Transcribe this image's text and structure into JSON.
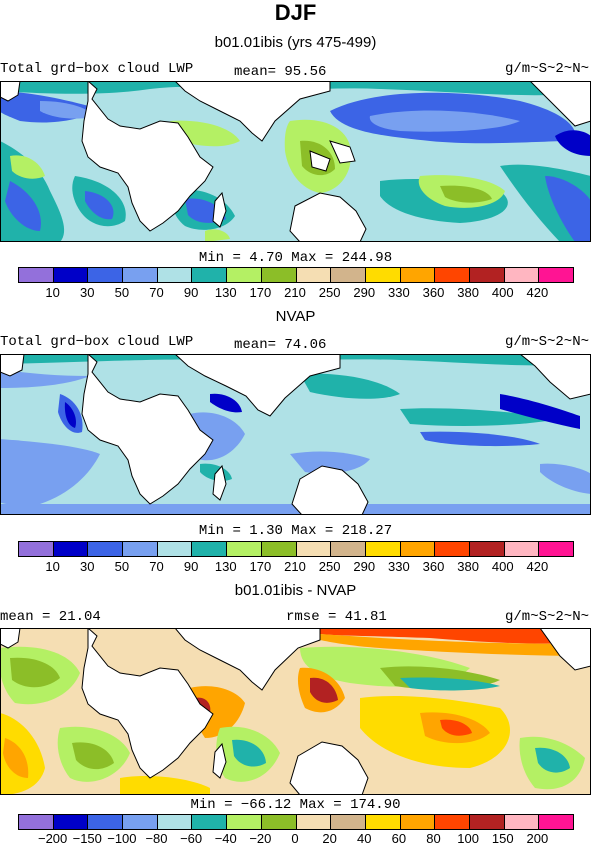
{
  "title": "DJF",
  "panels": [
    {
      "subtitle": "b01.01ibis (yrs 475-499)",
      "header_left": "Total grd−box cloud LWP",
      "header_mid": "mean=  95.56",
      "header_right": "g/m~S~2~N~",
      "stats": "Min =   4.70 Max = 244.98",
      "legend_labels": [
        "10",
        "30",
        "50",
        "70",
        "90",
        "130",
        "170",
        "210",
        "250",
        "290",
        "330",
        "360",
        "380",
        "400",
        "420"
      ]
    },
    {
      "subtitle": "NVAP",
      "header_left": "Total grd−box cloud LWP",
      "header_mid": "mean=  74.06",
      "header_right": "g/m~S~2~N~",
      "stats": "Min =   1.30 Max = 218.27",
      "legend_labels": [
        "10",
        "30",
        "50",
        "70",
        "90",
        "130",
        "170",
        "210",
        "250",
        "290",
        "330",
        "360",
        "380",
        "400",
        "420"
      ]
    },
    {
      "subtitle": "b01.01ibis - NVAP",
      "header_left": "mean =  21.04",
      "header_mid": "rmse =  41.81",
      "header_right": "g/m~S~2~N~",
      "stats": "Min = −66.12 Max = 174.90",
      "legend_labels": [
        "−200",
        "−150",
        "−100",
        "−80",
        "−60",
        "−40",
        "−20",
        "0",
        "20",
        "40",
        "60",
        "80",
        "100",
        "150",
        "200"
      ]
    }
  ],
  "colors": [
    "#9370db",
    "#0000c8",
    "#3c64e6",
    "#78a0f0",
    "#afe1e6",
    "#20b2aa",
    "#b4f064",
    "#8cbe28",
    "#f5deb3",
    "#d2b48c",
    "#ffdc00",
    "#ffa500",
    "#ff4500",
    "#b22222",
    "#ffb6c1",
    "#ff1493"
  ]
}
